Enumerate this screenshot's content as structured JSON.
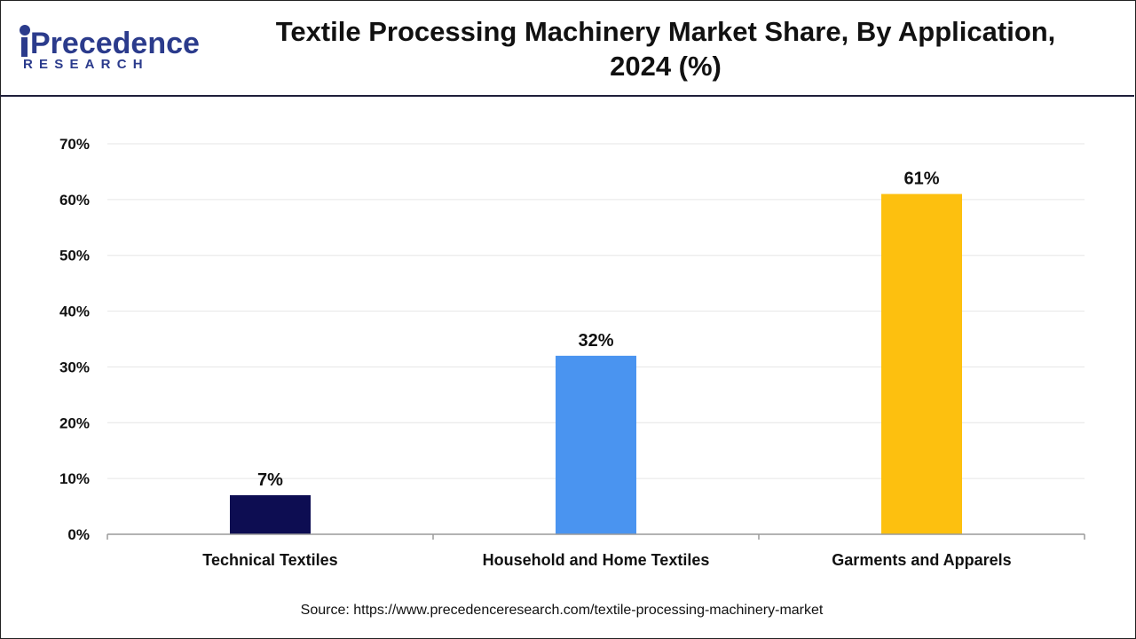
{
  "header": {
    "title_line1": "Textile Processing Machinery Market Share, By Application,",
    "title_line2": "2024 (%)"
  },
  "logo": {
    "wordmark": "Precedence",
    "subtitle": "RESEARCH",
    "color": "#2b3b8c"
  },
  "footer": {
    "source": "Source: https://www.precedenceresearch.com/textile-processing-machinery-market"
  },
  "chart_data": {
    "type": "bar",
    "categories": [
      "Technical Textiles",
      "Household and Home Textiles",
      "Garments and Apparels"
    ],
    "values": [
      7,
      32,
      61
    ],
    "value_labels": [
      "7%",
      "32%",
      "61%"
    ],
    "colors": [
      "#0d0d52",
      "#4a94f0",
      "#fdc00f"
    ],
    "title": "Textile Processing Machinery Market Share, By Application, 2024 (%)",
    "xlabel": "",
    "ylabel": "",
    "ylim": [
      0,
      70
    ],
    "yticks": [
      0,
      10,
      20,
      30,
      40,
      50,
      60,
      70
    ],
    "ytick_labels": [
      "0%",
      "10%",
      "20%",
      "30%",
      "40%",
      "50%",
      "60%",
      "70%"
    ],
    "grid": true,
    "legend": "none"
  }
}
